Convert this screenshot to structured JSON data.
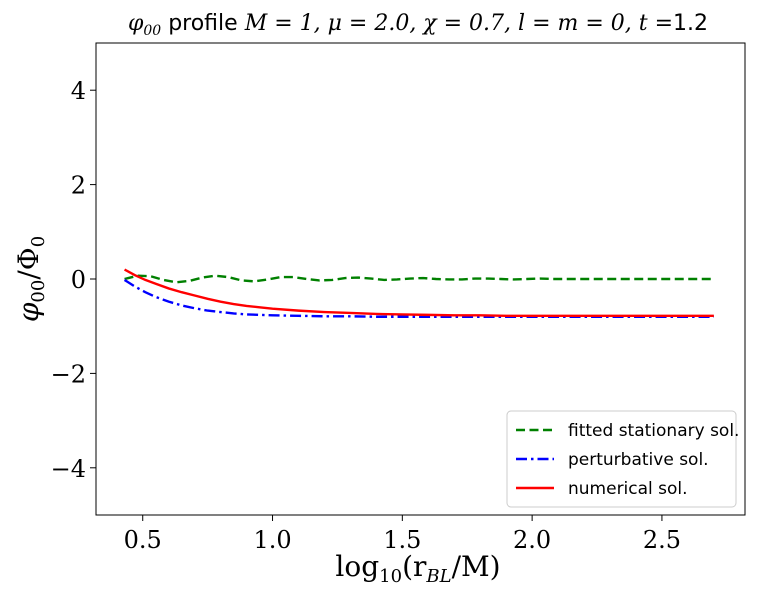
{
  "chart_data": {
    "type": "line",
    "title_prefix": "φ",
    "title_prefix_sub": "00",
    "title_word": " profile ",
    "title_math": "M = 1, μ = 2.0, χ = 0.7, l = m = 0, t =",
    "title_value": "1.2",
    "xlabel": "log10(r_BL/M)",
    "xlabel_prefix": "log",
    "xlabel_sub": "10",
    "xlabel_body": "(r",
    "xlabel_body_sub": "BL",
    "xlabel_tail": "/M)",
    "ylabel": "φ00/Φ0",
    "ylabel_a": "φ",
    "ylabel_a_sub": "00",
    "ylabel_b": "/Φ",
    "ylabel_b_sub": "0",
    "xlim": [
      0.32,
      2.82
    ],
    "ylim": [
      -5,
      5
    ],
    "xticks": [
      0.5,
      1.0,
      1.5,
      2.0,
      2.5
    ],
    "xtick_labels": [
      "0.5",
      "1.0",
      "1.5",
      "2.0",
      "2.5"
    ],
    "yticks": [
      -4,
      -2,
      0,
      2,
      4
    ],
    "ytick_labels": [
      "−4",
      "−2",
      "0",
      "2",
      "4"
    ],
    "grid": false,
    "legend_position": "lower-right",
    "series": [
      {
        "name": "fitted stationary sol.",
        "color": "#008000",
        "style": "dashed",
        "x": [
          0.43,
          0.48,
          0.53,
          0.58,
          0.63,
          0.68,
          0.73,
          0.78,
          0.83,
          0.88,
          0.93,
          0.98,
          1.03,
          1.08,
          1.13,
          1.18,
          1.23,
          1.28,
          1.33,
          1.38,
          1.43,
          1.48,
          1.53,
          1.58,
          1.63,
          1.68,
          1.73,
          1.78,
          1.83,
          1.88,
          1.93,
          1.98,
          2.03,
          2.08,
          2.13,
          2.18,
          2.23,
          2.28,
          2.33,
          2.38,
          2.43,
          2.48,
          2.53,
          2.58,
          2.63,
          2.7
        ],
        "y": [
          0.0,
          0.07,
          0.06,
          -0.02,
          -0.07,
          -0.04,
          0.03,
          0.07,
          0.04,
          -0.03,
          -0.05,
          -0.01,
          0.04,
          0.04,
          0.0,
          -0.03,
          -0.02,
          0.02,
          0.03,
          0.01,
          -0.02,
          -0.01,
          0.01,
          0.02,
          0.0,
          -0.01,
          -0.01,
          0.01,
          0.01,
          0.0,
          -0.01,
          0.0,
          0.01,
          0.0,
          0.0,
          0.0,
          0.0,
          0.0,
          0.0,
          0.0,
          0.0,
          0.0,
          0.0,
          0.0,
          0.0,
          0.0
        ]
      },
      {
        "name": "perturbative sol.",
        "color": "#0000ff",
        "style": "dashdot",
        "x": [
          0.43,
          0.47,
          0.51,
          0.55,
          0.6,
          0.65,
          0.7,
          0.75,
          0.8,
          0.85,
          0.9,
          0.95,
          1.0,
          1.1,
          1.2,
          1.3,
          1.4,
          1.5,
          1.6,
          1.7,
          1.8,
          1.9,
          2.0,
          2.1,
          2.2,
          2.3,
          2.4,
          2.5,
          2.6,
          2.7
        ],
        "y": [
          -0.02,
          -0.16,
          -0.28,
          -0.38,
          -0.48,
          -0.56,
          -0.62,
          -0.67,
          -0.7,
          -0.73,
          -0.75,
          -0.76,
          -0.77,
          -0.78,
          -0.79,
          -0.79,
          -0.8,
          -0.8,
          -0.8,
          -0.8,
          -0.8,
          -0.8,
          -0.8,
          -0.8,
          -0.8,
          -0.8,
          -0.8,
          -0.8,
          -0.8,
          -0.8
        ]
      },
      {
        "name": "numerical sol.",
        "color": "#ff0000",
        "style": "solid",
        "x": [
          0.43,
          0.47,
          0.51,
          0.55,
          0.6,
          0.65,
          0.7,
          0.75,
          0.8,
          0.85,
          0.9,
          0.95,
          1.0,
          1.1,
          1.2,
          1.3,
          1.4,
          1.5,
          1.6,
          1.7,
          1.8,
          1.9,
          2.0,
          2.1,
          2.2,
          2.3,
          2.4,
          2.5,
          2.6,
          2.7
        ],
        "y": [
          0.2,
          0.08,
          -0.02,
          -0.1,
          -0.2,
          -0.28,
          -0.35,
          -0.42,
          -0.48,
          -0.53,
          -0.57,
          -0.6,
          -0.63,
          -0.67,
          -0.7,
          -0.72,
          -0.74,
          -0.75,
          -0.76,
          -0.77,
          -0.77,
          -0.78,
          -0.78,
          -0.78,
          -0.78,
          -0.78,
          -0.78,
          -0.78,
          -0.78,
          -0.78
        ]
      }
    ]
  }
}
